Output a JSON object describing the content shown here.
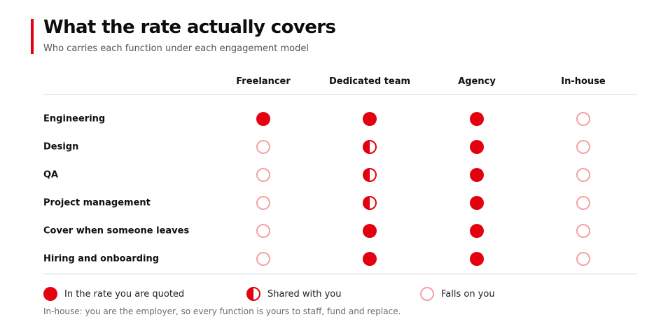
{
  "header": {
    "title": "What the rate actually covers",
    "subtitle": "Who carries each function under each engagement model"
  },
  "columns": [
    "Freelancer",
    "Dedicated team",
    "Agency",
    "In-house"
  ],
  "rows": [
    {
      "label": "Engineering",
      "values": [
        "full",
        "full",
        "full",
        "none"
      ]
    },
    {
      "label": "Design",
      "values": [
        "none",
        "half",
        "full",
        "none"
      ]
    },
    {
      "label": "QA",
      "values": [
        "none",
        "half",
        "full",
        "none"
      ]
    },
    {
      "label": "Project management",
      "values": [
        "none",
        "half",
        "full",
        "none"
      ]
    },
    {
      "label": "Cover when someone leaves",
      "values": [
        "none",
        "full",
        "full",
        "none"
      ]
    },
    {
      "label": "Hiring and onboarding",
      "values": [
        "none",
        "full",
        "full",
        "none"
      ]
    }
  ],
  "legend": [
    {
      "key": "full",
      "label": "In the rate you are quoted"
    },
    {
      "key": "half",
      "label": "Shared with you"
    },
    {
      "key": "none",
      "label": "Falls on you"
    }
  ],
  "footnote": "In-house: you are the employer, so every function is yours to staff, fund and replace.",
  "colors": {
    "accent": "#e3000f",
    "empty_ring": "#f2a2a2",
    "rule": "#d9d9d9"
  }
}
